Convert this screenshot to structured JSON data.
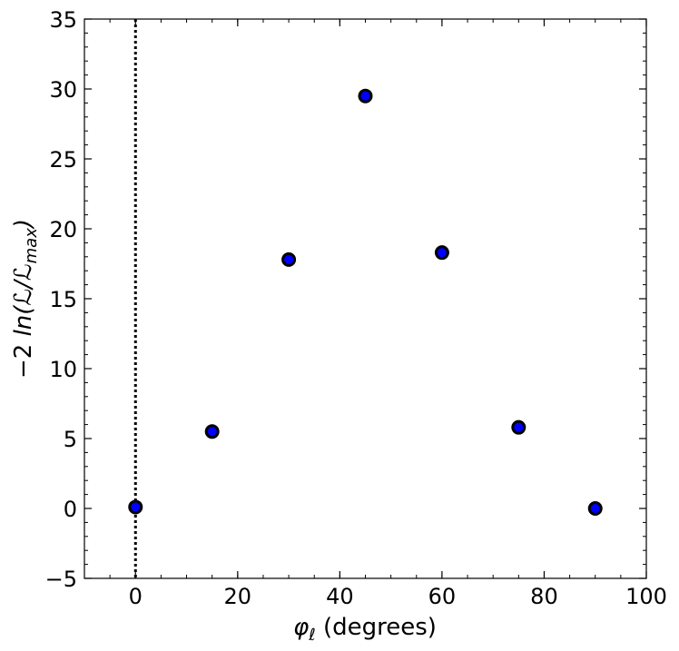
{
  "chart_data": {
    "type": "scatter",
    "x_label": {
      "symbol": "φ",
      "subscript": "ℓ",
      "rest": " (degrees)"
    },
    "y_label": {
      "prefix": "−2 ",
      "ln": "ln(ℒ/ℒ",
      "subscript": "max",
      "suffix": ")"
    },
    "series": [
      {
        "color": "#0000ff",
        "edgecolor": "#000000",
        "x": [
          0,
          15,
          30,
          45,
          60,
          75,
          90
        ],
        "values": [
          0.1,
          5.5,
          17.8,
          29.5,
          18.3,
          5.8,
          0
        ]
      }
    ],
    "xlim": [
      -10,
      100
    ],
    "xticks": [
      0,
      20,
      40,
      60,
      80,
      100
    ],
    "ylim": [
      -5,
      35
    ],
    "yticks": [
      {
        "value": -5,
        "label": "−5"
      },
      0,
      5,
      10,
      15,
      20,
      25,
      30,
      35
    ],
    "vline": {
      "x": 0,
      "style": "dotted",
      "color": "#000000"
    }
  }
}
